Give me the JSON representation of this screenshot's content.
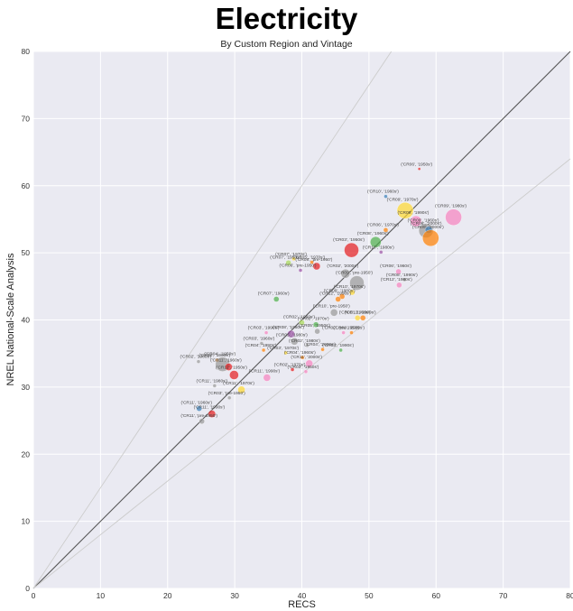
{
  "chart_data": {
    "type": "scatter",
    "title": "Electricity",
    "subtitle": "By Custom Region and Vintage",
    "xlabel": "RECS",
    "ylabel": "NREL National-Scale Analysis",
    "xlim": [
      0,
      80
    ],
    "ylim": [
      0,
      80
    ],
    "x_ticks": [
      0,
      10,
      20,
      30,
      40,
      50,
      60,
      70,
      80
    ],
    "y_ticks": [
      0,
      10,
      20,
      30,
      40,
      50,
      60,
      70,
      80
    ],
    "grid": true,
    "background": "#eaeaf2",
    "reference_lines": [
      {
        "slope": 1.0,
        "color": "#555555"
      },
      {
        "slope": 1.5,
        "color": "#cccccc"
      },
      {
        "slope": 0.8,
        "color": "#cccccc"
      }
    ],
    "points": [
      {
        "label": "('CR06', '1950s')",
        "x": 57.5,
        "y": 62.5,
        "size": 1.5,
        "color": "#e41a1c"
      },
      {
        "label": "('CR10', '1960s')",
        "x": 52.5,
        "y": 58.4,
        "size": 2,
        "color": "#377eb8"
      },
      {
        "label": "('CR09', '1970s')",
        "x": 55.4,
        "y": 56.3,
        "size": 9,
        "color": "#ffd92f"
      },
      {
        "label": "('CR06', '1970s')",
        "x": 52.5,
        "y": 53.4,
        "size": 2.5,
        "color": "#ff7f00"
      },
      {
        "label": "('CR08', '1960s')",
        "x": 51,
        "y": 51.6,
        "size": 6,
        "color": "#4daf4a"
      },
      {
        "label": "('CR09', '1960s')",
        "x": 58.5,
        "y": 53.3,
        "size": 8,
        "color": "#999999"
      },
      {
        "label": "('CR09', '1980s')",
        "x": 62.6,
        "y": 55.3,
        "size": 9,
        "color": "#f781bf"
      },
      {
        "label": "('CR09', '1990s')",
        "x": 57,
        "y": 54.7,
        "size": 6,
        "color": "#f781bf"
      },
      {
        "label": "('CR06', '2000s')",
        "x": 58.9,
        "y": 53.4,
        "size": 4,
        "color": "#377eb8"
      },
      {
        "label": "('CR09', '2000s')",
        "x": 59.2,
        "y": 52.2,
        "size": 9,
        "color": "#ff7f00"
      },
      {
        "label": "('CR03', '1950s')",
        "x": 47.4,
        "y": 50.4,
        "size": 8,
        "color": "#e41a1c"
      },
      {
        "label": "('CR10', '1980s')",
        "x": 51.8,
        "y": 50.1,
        "size": 2,
        "color": "#984ea3"
      },
      {
        "label": "('CR07', '1970s')",
        "x": 38.8,
        "y": 49.1,
        "size": 2,
        "color": "#ffd92f"
      },
      {
        "label": "('CR05', '1970s')",
        "x": 41.5,
        "y": 48.6,
        "size": 2,
        "color": "#ff7f00"
      },
      {
        "label": "('CR07', '1950s')",
        "x": 38,
        "y": 48.5,
        "size": 3,
        "color": "#a6d854"
      },
      {
        "label": "('CR08', 'pre-1950')",
        "x": 42.2,
        "y": 48,
        "size": 4,
        "color": "#e41a1c"
      },
      {
        "label": "('CR06', '1960s')",
        "x": 54.4,
        "y": 47.2,
        "size": 3,
        "color": "#f781bf"
      },
      {
        "label": "('CR06', 'pre-1950')",
        "x": 39.8,
        "y": 47.4,
        "size": 2,
        "color": "#984ea3"
      },
      {
        "label": "('CR02', '2000s')",
        "x": 46.5,
        "y": 46.9,
        "size": 5,
        "color": "#999999"
      },
      {
        "label": "('CR08', '1990s')",
        "x": 55.3,
        "y": 46,
        "size": 2,
        "color": "#999999"
      },
      {
        "label": "('CR09', 'pre-1950')",
        "x": 48.2,
        "y": 45.5,
        "size": 8,
        "color": "#999999"
      },
      {
        "label": "('CR12', '1980s')",
        "x": 54.5,
        "y": 45.2,
        "size": 3,
        "color": "#f781bf"
      },
      {
        "label": "('CR07', '1960s')",
        "x": 36.2,
        "y": 43.1,
        "size": 3,
        "color": "#4daf4a"
      },
      {
        "label": "('CR10', '1970s')",
        "x": 47.5,
        "y": 44.1,
        "size": 3,
        "color": "#ffd92f"
      },
      {
        "label": "('CR09', '1980s')",
        "x": 46,
        "y": 43.5,
        "size": 3,
        "color": "#ff7f00"
      },
      {
        "label": "('CR12', '1990s')",
        "x": 45.4,
        "y": 43.1,
        "size": 3,
        "color": "#ff7f00"
      },
      {
        "label": "('CR10', 'pre-1950')",
        "x": 44.8,
        "y": 41.1,
        "size": 4,
        "color": "#999999"
      },
      {
        "label": "('CR05', '1960s')",
        "x": 48.3,
        "y": 40.3,
        "size": 3,
        "color": "#ffd92f"
      },
      {
        "label": "('CR12', '2000s')",
        "x": 49.1,
        "y": 40.3,
        "size": 3,
        "color": "#ff7f00"
      },
      {
        "label": "('CR02', '1960s')",
        "x": 40,
        "y": 39.6,
        "size": 3,
        "color": "#a6d854"
      },
      {
        "label": "('CR02', '1970s')",
        "x": 42.1,
        "y": 39.3,
        "size": 3,
        "color": "#4daf4a"
      },
      {
        "label": "('CR03', '1990s')",
        "x": 34.7,
        "y": 38.1,
        "size": 2,
        "color": "#f781bf"
      },
      {
        "label": "('CR08', '1960s')",
        "x": 38.4,
        "y": 37.9,
        "size": 4,
        "color": "#984ea3"
      },
      {
        "label": "('CR05', '1950s')",
        "x": 42.3,
        "y": 38.3,
        "size": 3,
        "color": "#999999"
      },
      {
        "label": "('CR02', 'pre-1950')",
        "x": 46.2,
        "y": 38.1,
        "size": 2,
        "color": "#f781bf"
      },
      {
        "label": "('CR02', '2000s')",
        "x": 47.4,
        "y": 38.1,
        "size": 2,
        "color": "#ff7f00"
      },
      {
        "label": "('CR05', '1980s')",
        "x": 38.9,
        "y": 36.8,
        "size": 4,
        "color": "#999999"
      },
      {
        "label": "('CR03', '1960s')",
        "x": 34,
        "y": 36.5,
        "size": 2,
        "color": "#999999"
      },
      {
        "label": "('CR02', '1980s')",
        "x": 40.8,
        "y": 36.2,
        "size": 2,
        "color": "#999999"
      },
      {
        "label": "('CR04', '1990s')",
        "x": 34.3,
        "y": 35.5,
        "size": 2,
        "color": "#ff7f00"
      },
      {
        "label": "('CR04', '2000s')",
        "x": 43.1,
        "y": 35.6,
        "size": 2,
        "color": "#ff7f00"
      },
      {
        "label": "('CR03', '1990s')",
        "x": 45.8,
        "y": 35.5,
        "size": 2,
        "color": "#4daf4a"
      },
      {
        "label": "('CR03', '1970s')",
        "x": 37.6,
        "y": 35.1,
        "size": 2,
        "color": "#ffd92f"
      },
      {
        "label": "('CR04', '1960s')",
        "x": 40.1,
        "y": 34.4,
        "size": 2,
        "color": "#ff7f00"
      },
      {
        "label": "('CR02', '1980s')",
        "x": 24.6,
        "y": 33.8,
        "size": 2,
        "color": "#999999"
      },
      {
        "label": "('CR02', '1960s')",
        "x": 27.4,
        "y": 34,
        "size": 2,
        "color": "#ff7f00"
      },
      {
        "label": "('CR04', '1950s')",
        "x": 28.2,
        "y": 33.4,
        "size": 8,
        "color": "#999999"
      },
      {
        "label": "('CR11', '1960s')",
        "x": 29.1,
        "y": 33,
        "size": 4,
        "color": "#e41a1c"
      },
      {
        "label": "('CR11', '2000s')",
        "x": 41.1,
        "y": 33.5,
        "size": 4,
        "color": "#f781bf"
      },
      {
        "label": "('CR02', '1970s')",
        "x": 38.6,
        "y": 32.6,
        "size": 2,
        "color": "#e41a1c"
      },
      {
        "label": "('CR03', '1950s')",
        "x": 40.6,
        "y": 32.3,
        "size": 2,
        "color": "#f781bf"
      },
      {
        "label": "('CR12', '1950s')",
        "x": 29.9,
        "y": 31.8,
        "size": 5,
        "color": "#e41a1c"
      },
      {
        "label": "('CR11', '1990s')",
        "x": 34.8,
        "y": 31.4,
        "size": 4,
        "color": "#f781bf"
      },
      {
        "label": "('CR11', '1980s')",
        "x": 27,
        "y": 30.2,
        "size": 2,
        "color": "#999999"
      },
      {
        "label": "('CR11', '1970s')",
        "x": 31,
        "y": 29.6,
        "size": 4,
        "color": "#ffd92f"
      },
      {
        "label": "('CR11', '1960s')",
        "x": 24.7,
        "y": 26.8,
        "size": 3,
        "color": "#377eb8"
      },
      {
        "label": "('CR03', 'pre-1950')",
        "x": 29.2,
        "y": 28.4,
        "size": 2,
        "color": "#999999"
      },
      {
        "label": "('CR11', '1990s')",
        "x": 26.6,
        "y": 26,
        "size": 4,
        "color": "#e41a1c"
      },
      {
        "label": "('CR11', 'pre-1950')",
        "x": 25.1,
        "y": 24.9,
        "size": 3,
        "color": "#999999"
      }
    ]
  }
}
